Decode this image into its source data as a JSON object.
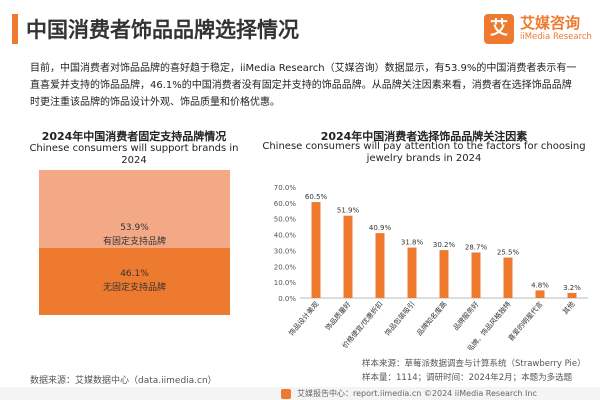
{
  "header": {
    "title": "中国消费者饰品品牌选择情况",
    "logo_text": "艾",
    "logo_name": "艾媒咨询",
    "logo_sub": "iiMedia Research"
  },
  "intro": "目前，中国消费者对饰品品牌的喜好趋于稳定，iiMedia Research（艾媒咨询）数据显示，有53.9%的中国消费者表示有一直喜爱并支持的饰品品牌，46.1%的中国消费者没有固定并支持的饰品品牌。从品牌关注因素来看，消费者在选择饰品品牌时更注重该品牌的饰品设计外观、饰品质量和价格优惠。",
  "left_chart": {
    "title_zh": "2024年中国消费者固定支持品牌情况",
    "title_en": "Chinese consumers will support brands in 2024",
    "top_value": "53.9%",
    "top_label": "有固定支持品牌",
    "bottom_value": "46.1%",
    "bottom_label": "无固定支持品牌",
    "colors": {
      "top": "#f3a986",
      "bottom": "#ee7a2f"
    }
  },
  "right_chart": {
    "title_zh": "2024年中国消费者选择饰品品牌关注因素",
    "title_en": "Chinese consumers will pay attention to the factors for choosing jewelry brands in 2024"
  },
  "chart_data": [
    {
      "type": "bar",
      "categories": [
        "有固定支持品牌",
        "无固定支持品牌"
      ],
      "values": [
        53.9,
        46.1
      ],
      "stacked": true,
      "title": "2024年中国消费者固定支持品牌情况",
      "subtitle": "Chinese consumers will support brands in 2024"
    },
    {
      "type": "bar",
      "categories": [
        "饰品设计美观",
        "饰品质量好",
        "价格便宜/优惠折扣",
        "饰品包装吸引",
        "品牌知名度高",
        "品牌服务好",
        "品牌、饰品风格独特",
        "喜爱的明星代言",
        "其他"
      ],
      "values": [
        60.5,
        51.9,
        40.9,
        31.8,
        30.2,
        28.7,
        25.5,
        4.8,
        3.2
      ],
      "value_labels": [
        "60.5%",
        "51.9%",
        "40.9%",
        "31.8%",
        "30.2%",
        "28.7%",
        "25.5%",
        "4.8%",
        "3.2%"
      ],
      "yticks": [
        "0.0%",
        "10.0%",
        "20.0%",
        "30.0%",
        "40.0%",
        "50.0%",
        "60.0%",
        "70.0%"
      ],
      "ylim": [
        0,
        70
      ],
      "title": "2024年中国消费者选择饰品品牌关注因素",
      "subtitle": "Chinese consumers will pay attention to the factors for choosing jewelry brands in 2024",
      "grid": false,
      "color": "#ee7a2f"
    }
  ],
  "footer": {
    "source_left": "数据来源：艾媒数据中心（data.iimedia.cn）",
    "sample_source": "样本来源：草莓派数据调查与计算系统（Strawberry Pie）",
    "sample_size": "样本量：1114；调研时间：2024年2月；本题为多选题",
    "bottom": "艾媒报告中心：report.iimedia.cn  ©2024  iiMedia Research  Inc"
  }
}
